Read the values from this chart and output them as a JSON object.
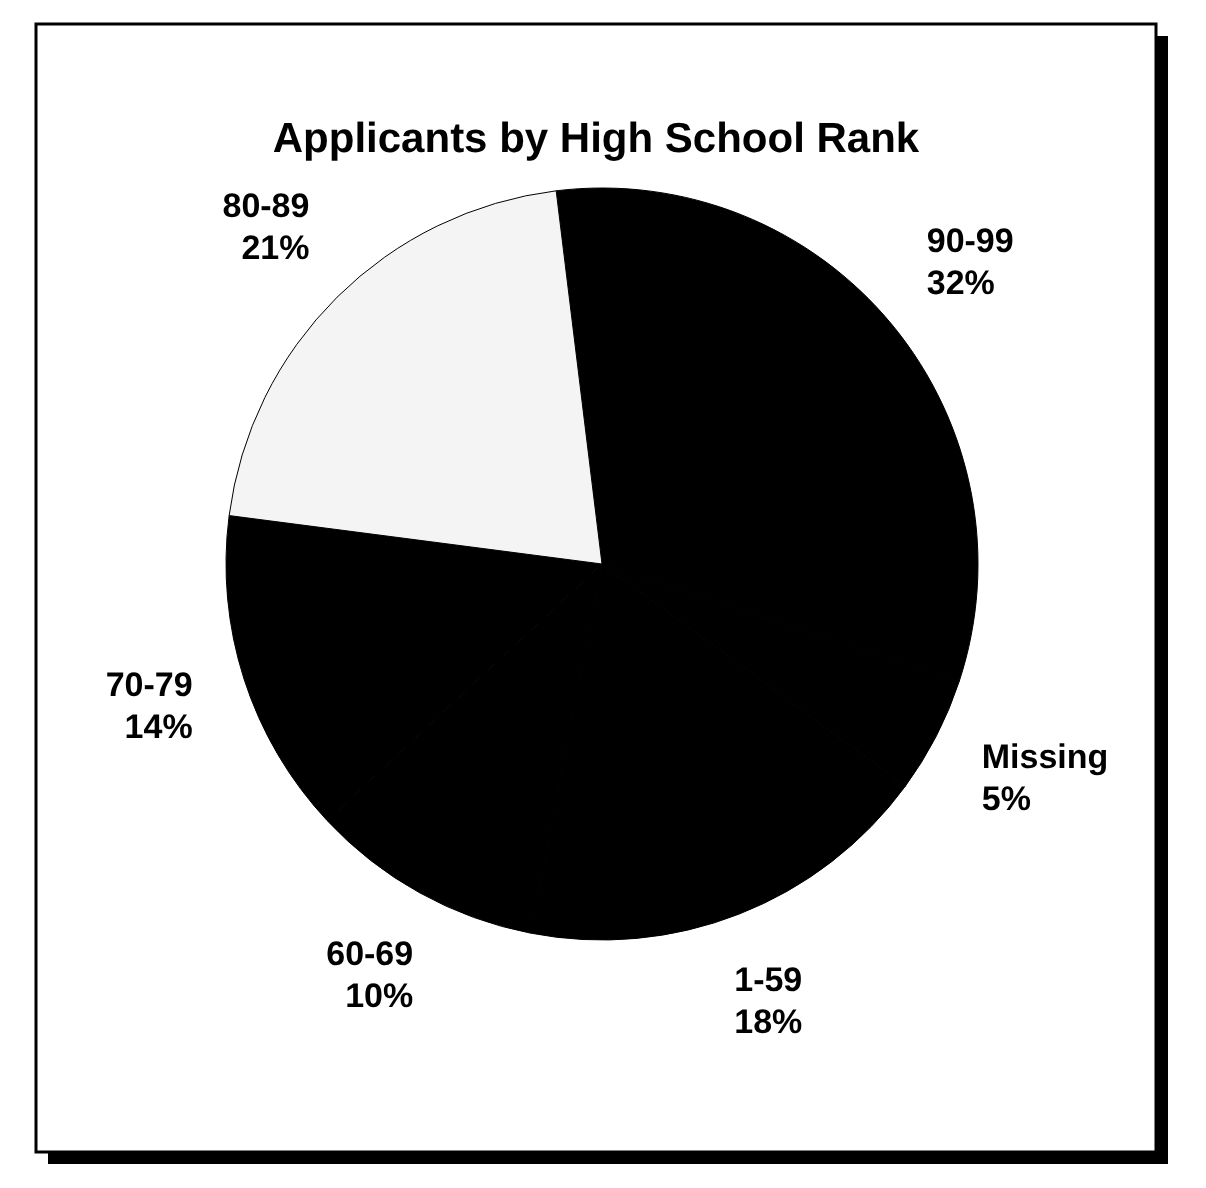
{
  "chart_data": {
    "type": "pie",
    "title": "Applicants by High School Rank",
    "categories": [
      "90-99",
      "Missing",
      "1-59",
      "60-69",
      "70-79",
      "80-89"
    ],
    "values": [
      32,
      5,
      18,
      10,
      14,
      21
    ],
    "colors": [
      "#000000",
      "#000000",
      "#000000",
      "#000000",
      "#000000",
      "#f4f4f4"
    ],
    "value_labels": [
      "32%",
      "5%",
      "18%",
      "10%",
      "14%",
      "21%"
    ]
  }
}
